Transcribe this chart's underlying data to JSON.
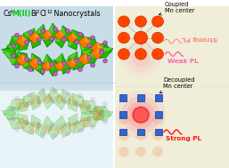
{
  "bg_left": "#c8dde8",
  "bg_right": "#f0edd8",
  "bg_left_lower": "#ddeef8",
  "coupled_color": "#ff4400",
  "decoupled_color": "#3366cc",
  "weak_pl_color": "#ff66aa",
  "strong_pl_color": "#ff1111",
  "label_coupled": "Coupled\nMn center",
  "label_decoupled": "Decoupled\nMn center",
  "label_weak": "Weak PL",
  "label_strong": "Strong PL",
  "green_poly": "#22bb00",
  "green_poly_dark": "#007700",
  "green_poly_light": "#88ee44",
  "orange_poly": "#ff7700",
  "orange_poly_dark": "#cc4400",
  "purple_atom": "#cc55cc"
}
